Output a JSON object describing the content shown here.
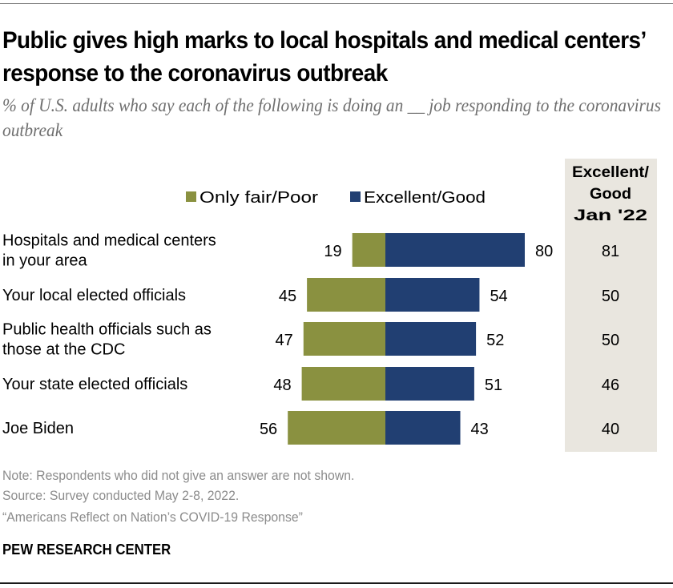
{
  "title": "Public gives high marks to local hospitals and medical centers’ response to the coronavirus outbreak",
  "subtitle": "% of U.S. adults who say each of the following is doing an __ job responding to the coronavirus outbreak",
  "notes": [
    "Note: Respondents who did not give an answer are not shown.",
    "Source: Survey conducted May 2-8, 2022.",
    "“Americans Reflect on Nation’s COVID-19 Response”"
  ],
  "brand": "PEW RESEARCH CENTER",
  "colors": {
    "negative": "#8a9140",
    "positive": "#213f72",
    "side_column_bg": "#e9e6df",
    "label_text": "#000000"
  },
  "chart_data": {
    "type": "bar",
    "orientation": "horizontal-diverging",
    "title": "Public gives high marks to local hospitals and medical centers’ response to the coronavirus outbreak",
    "xlabel": "",
    "ylabel": "",
    "grid": false,
    "legend": {
      "placement": "top",
      "entries": [
        "Only fair/Poor",
        "Excellent/Good"
      ]
    },
    "categories": [
      [
        "Hospitals and medical centers",
        "in your area"
      ],
      [
        "Your local elected officials"
      ],
      [
        "Public health officials such as",
        "those at the CDC"
      ],
      [
        "Your state elected officials"
      ],
      [
        "Joe Biden"
      ]
    ],
    "series": [
      {
        "name": "Only fair/Poor",
        "values": [
          19,
          45,
          47,
          48,
          56
        ]
      },
      {
        "name": "Excellent/Good",
        "values": [
          80,
          54,
          52,
          51,
          43
        ]
      }
    ],
    "side_column": {
      "header": [
        "Excellent/",
        "Good",
        "Jan '22"
      ],
      "values": [
        81,
        50,
        50,
        46,
        40
      ]
    }
  }
}
